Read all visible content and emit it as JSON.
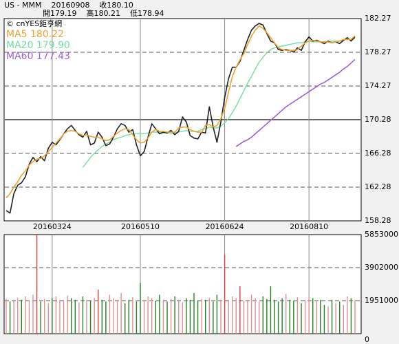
{
  "header": {
    "line1": "US - MMM    20160908    收180.10",
    "line2": "開179.19    高180.21    低178.94",
    "watermark": "© cnYES鉅亨網"
  },
  "legend": [
    {
      "label": "MA5 180.22",
      "color": "#f0a030"
    },
    {
      "label": "MA20 179.90",
      "color": "#70e0a0"
    },
    {
      "label": "MA60 177.43",
      "color": "#9a62d8"
    }
  ],
  "colors": {
    "price": "#202020",
    "volume_up": "#d04040",
    "volume_down": "#208020",
    "volume_neutral": "#e09090"
  },
  "chart_data": [
    {
      "type": "line",
      "name": "price",
      "ylim": [
        158.28,
        182.27
      ],
      "y_ticks": [
        "182.27",
        "178.27",
        "174.27",
        "170.28",
        "166.28",
        "162.28",
        "158.28"
      ],
      "x_ticks": [
        "20160324",
        "20160510",
        "20160624",
        "20160810"
      ],
      "grid": true,
      "series": [
        {
          "name": "close",
          "values": [
            159.5,
            159.2,
            161.5,
            162.5,
            162.8,
            163.5,
            165.0,
            165.8,
            165.3,
            165.9,
            165.4,
            166.9,
            167.6,
            167.3,
            167.9,
            168.6,
            169.2,
            169.6,
            169.0,
            168.5,
            168.2,
            168.9,
            167.3,
            167.5,
            168.8,
            168.2,
            167.2,
            167.4,
            168.2,
            169.2,
            169.8,
            169.6,
            168.8,
            169.1,
            167.3,
            166.0,
            166.5,
            168.2,
            169.8,
            169.2,
            168.6,
            168.8,
            168.7,
            169.0,
            168.5,
            168.9,
            170.6,
            170.0,
            168.4,
            168.1,
            168.0,
            168.8,
            168.7,
            171.8,
            169.4,
            167.6,
            170.0,
            172.9,
            175.1,
            176.5,
            176.5,
            177.2,
            178.5,
            179.8,
            180.9,
            181.4,
            181.7,
            181.5,
            180.5,
            179.6,
            179.4,
            178.6,
            178.5,
            178.6,
            178.5,
            178.3,
            178.8,
            178.5,
            179.5,
            180.1,
            179.6,
            179.7,
            179.5,
            179.3,
            179.6,
            179.4,
            179.5,
            179.3,
            179.7,
            180.0,
            179.6,
            180.1
          ]
        },
        {
          "name": "MA5",
          "values": [
            161.0,
            161.5,
            162.3,
            162.9,
            163.7,
            164.2,
            164.9,
            165.3,
            165.6,
            165.7,
            166.0,
            166.5,
            167.0,
            167.5,
            168.0,
            168.6,
            168.9,
            169.0,
            168.9,
            168.6,
            168.4,
            168.5,
            168.3,
            168.2,
            168.2,
            168.0,
            167.8,
            167.9,
            168.3,
            168.7,
            169.0,
            169.2,
            169.1,
            168.5,
            167.9,
            167.5,
            167.6,
            168.1,
            168.8,
            169.1,
            168.9,
            168.9,
            168.8,
            168.8,
            168.8,
            169.3,
            169.4,
            169.4,
            169.1,
            168.9,
            168.8,
            168.8,
            169.6,
            169.7,
            169.4,
            169.6,
            170.4,
            171.6,
            173.5,
            175.4,
            176.5,
            177.4,
            178.1,
            179.2,
            180.2,
            180.9,
            181.4,
            181.1,
            180.6,
            180.0,
            179.4,
            178.8,
            178.6,
            178.5,
            178.5,
            178.5,
            178.6,
            179.0,
            179.4,
            179.6,
            179.7,
            179.6,
            179.5,
            179.5,
            179.5,
            179.4,
            179.5,
            179.6,
            179.8,
            179.8,
            179.8,
            180.22
          ]
        },
        {
          "name": "MA20",
          "values": [
            null,
            null,
            null,
            null,
            null,
            null,
            null,
            null,
            null,
            null,
            null,
            null,
            null,
            null,
            null,
            null,
            null,
            null,
            null,
            null,
            164.6,
            165.2,
            165.8,
            166.3,
            166.7,
            167.1,
            167.4,
            167.6,
            167.9,
            168.1,
            168.2,
            168.4,
            168.5,
            168.6,
            168.6,
            168.6,
            168.6,
            168.7,
            168.8,
            168.8,
            168.8,
            168.7,
            168.7,
            168.7,
            168.7,
            168.8,
            168.9,
            169.0,
            168.9,
            168.9,
            168.9,
            169.1,
            169.2,
            169.4,
            169.3,
            169.3,
            169.5,
            169.9,
            170.4,
            171.1,
            171.9,
            172.8,
            173.7,
            174.6,
            175.4,
            176.3,
            177.1,
            177.7,
            178.2,
            178.6,
            178.8,
            178.9,
            179.0,
            179.1,
            179.2,
            179.3,
            179.4,
            179.4,
            179.5,
            179.6,
            179.5,
            179.5,
            179.5,
            179.5,
            179.5,
            179.6,
            179.6,
            179.6,
            179.7,
            179.8,
            179.8,
            179.9
          ]
        },
        {
          "name": "MA60",
          "values": [
            null,
            null,
            null,
            null,
            null,
            null,
            null,
            null,
            null,
            null,
            null,
            null,
            null,
            null,
            null,
            null,
            null,
            null,
            null,
            null,
            null,
            null,
            null,
            null,
            null,
            null,
            null,
            null,
            null,
            null,
            null,
            null,
            null,
            null,
            null,
            null,
            null,
            null,
            null,
            null,
            null,
            null,
            null,
            null,
            null,
            null,
            null,
            null,
            null,
            null,
            null,
            null,
            null,
            null,
            null,
            null,
            null,
            null,
            null,
            null,
            167.1,
            167.4,
            167.7,
            167.9,
            168.2,
            168.6,
            169.0,
            169.4,
            169.8,
            170.2,
            170.6,
            171.0,
            171.4,
            171.8,
            172.1,
            172.4,
            172.7,
            173.0,
            173.3,
            173.6,
            173.9,
            174.2,
            174.5,
            174.7,
            175.0,
            175.3,
            175.6,
            175.9,
            176.3,
            176.6,
            177.0,
            177.43
          ]
        }
      ]
    },
    {
      "type": "bar",
      "name": "volume",
      "ylim": [
        0,
        5853000
      ],
      "y_ticks": [
        "5853000",
        "3902000",
        "1951000",
        "0"
      ],
      "values": [
        2050000,
        1900000,
        2000000,
        2100000,
        2000000,
        2200000,
        1950000,
        2300000,
        5853000,
        1900000,
        2050000,
        1800000,
        2100000,
        2200000,
        2000000,
        1900000,
        2250000,
        2100000,
        2000000,
        1850000,
        2200000,
        2000000,
        1950000,
        2100000,
        2600000,
        2000000,
        1900000,
        2300000,
        2100000,
        2000000,
        2400000,
        1800000,
        2000000,
        2150000,
        1900000,
        3000000,
        2000000,
        2200000,
        2100000,
        1950000,
        2300000,
        2000000,
        1900000,
        2050000,
        2200000,
        2000000,
        1850000,
        2100000,
        2000000,
        2400000,
        1950000,
        2050000,
        2000000,
        2100000,
        1900000,
        2300000,
        2000000,
        4650000,
        2000000,
        2200000,
        2100000,
        2800000,
        1950000,
        2000000,
        2300000,
        2100000,
        1900000,
        2200000,
        2050000,
        2800000,
        2000000,
        1900000,
        2100000,
        2350000,
        2000000,
        1950000,
        2150000,
        1800000,
        2000000,
        2200000,
        2100000,
        1900000,
        2000000,
        1700000,
        1600000,
        2000000,
        1800000,
        1900000,
        1700000,
        2200000,
        2100000,
        2000000
      ],
      "directions": [
        1,
        -1,
        1,
        1,
        -1,
        1,
        1,
        1,
        1,
        -1,
        1,
        1,
        -1,
        1,
        1,
        1,
        1,
        -1,
        -1,
        1,
        -1,
        1,
        -1,
        1,
        1,
        -1,
        -1,
        1,
        1,
        1,
        1,
        -1,
        -1,
        1,
        -1,
        -1,
        1,
        1,
        1,
        -1,
        -1,
        1,
        -1,
        1,
        -1,
        1,
        1,
        -1,
        -1,
        -1,
        -1,
        1,
        -1,
        1,
        -1,
        -1,
        1,
        1,
        1,
        1,
        1,
        1,
        1,
        1,
        1,
        1,
        1,
        -1,
        -1,
        -1,
        -1,
        -1,
        -1,
        1,
        -1,
        -1,
        1,
        -1,
        1,
        1,
        -1,
        1,
        -1,
        -1,
        1,
        -1,
        1,
        -1,
        1,
        1,
        -1,
        1
      ]
    }
  ]
}
